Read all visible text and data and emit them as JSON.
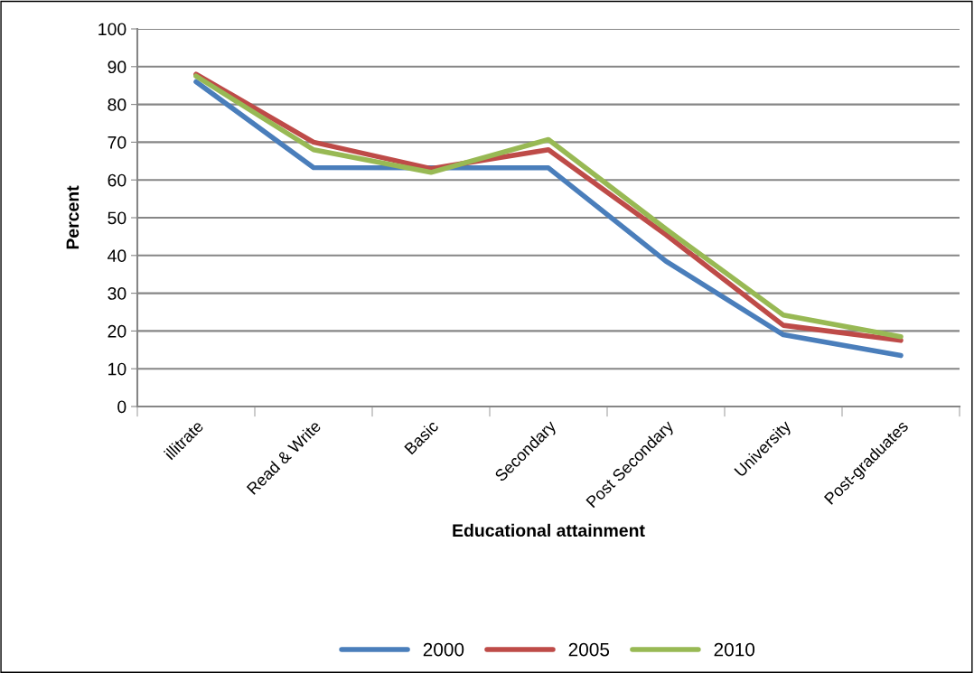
{
  "chart_data": {
    "type": "line",
    "xlabel": "Educational attainment",
    "ylabel": "Percent",
    "categories": [
      "illitrate",
      "Read & Write",
      "Basic",
      "Secondary",
      "Post Secondary",
      "University",
      "Post-graduates"
    ],
    "series": [
      {
        "name": "2000",
        "color": "#4a7ebb",
        "values": [
          86,
          63.3,
          63.2,
          63.2,
          38.5,
          19,
          13.5
        ]
      },
      {
        "name": "2005",
        "color": "#be4b48",
        "values": [
          88,
          70,
          63,
          68,
          45.5,
          21.5,
          17.5
        ]
      },
      {
        "name": "2010",
        "color": "#98b954",
        "values": [
          87.5,
          68,
          62,
          70.7,
          47,
          24.2,
          18.5
        ]
      }
    ],
    "ylim": [
      0,
      100
    ],
    "yticks": [
      0,
      10,
      20,
      30,
      40,
      50,
      60,
      70,
      80,
      90,
      100
    ],
    "grid": "y",
    "legend": "bottom",
    "marker": "none",
    "line_style": "solid"
  }
}
